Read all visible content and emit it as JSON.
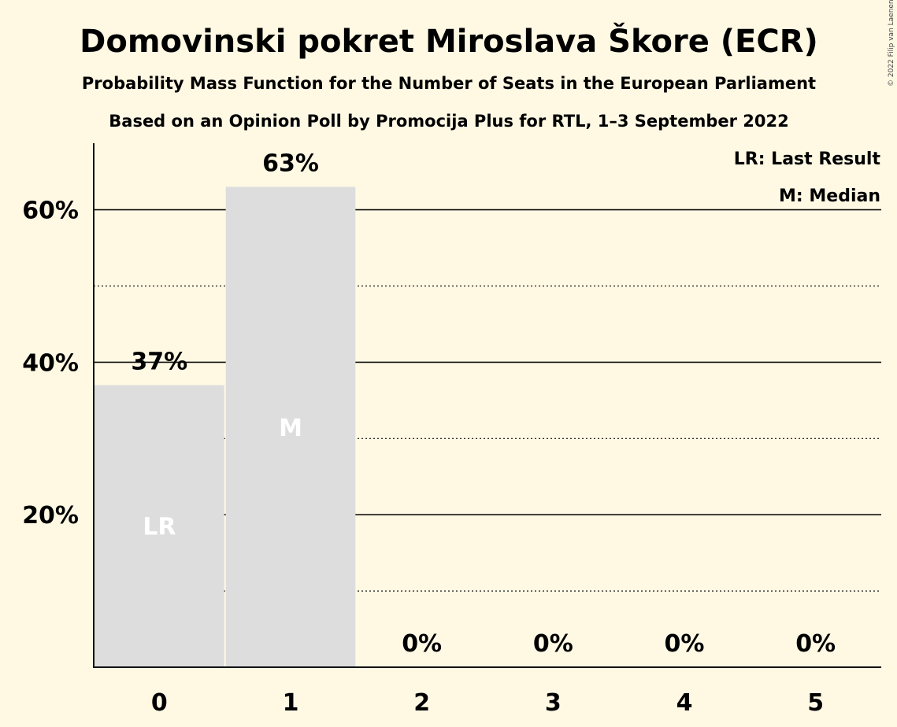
{
  "chart_data": {
    "type": "bar",
    "title": "Domovinski pokret Miroslava Škore (ECR)",
    "subtitle": "Probability Mass Function for the Number of Seats in the European Parliament",
    "subtitle2": "Based on an Opinion Poll by Promocija Plus for RTL, 1–3 September 2022",
    "categories": [
      "0",
      "1",
      "2",
      "3",
      "4",
      "5"
    ],
    "values": [
      37,
      63,
      0,
      0,
      0,
      0
    ],
    "value_labels": [
      "37%",
      "63%",
      "0%",
      "0%",
      "0%",
      "0%"
    ],
    "bar_markers": [
      "LR",
      "M",
      "",
      "",
      "",
      ""
    ],
    "ylim": [
      0,
      69
    ],
    "y_ticks": [
      20,
      40,
      60
    ],
    "y_tick_labels": [
      "20%",
      "40%",
      "60%"
    ],
    "y_minor_ticks": [
      10,
      30,
      50
    ],
    "grid": true,
    "legend": [
      "LR: Last Result",
      "M: Median"
    ],
    "legend_position": "top-right",
    "copyright": "© 2022 Filip van Laenen",
    "colors": {
      "bar": "#dddddd",
      "background": "#fff9e4",
      "text": "#111111",
      "marker": "#ffffff"
    }
  }
}
